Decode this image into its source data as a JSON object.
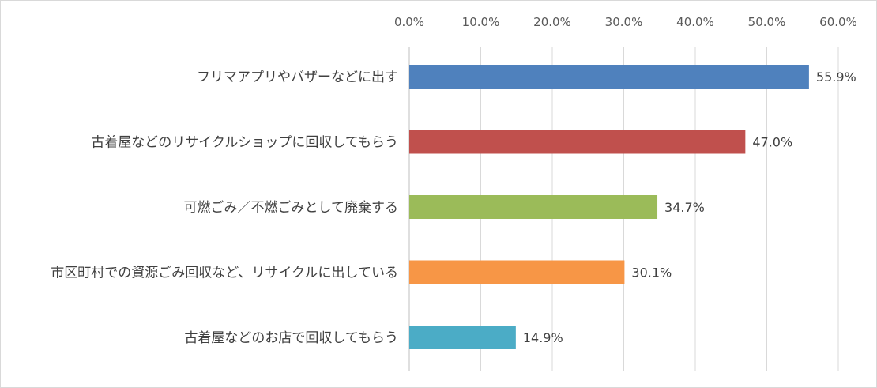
{
  "chart_data": {
    "type": "bar",
    "orientation": "horizontal",
    "title": "",
    "xlabel": "",
    "ylabel": "",
    "xlim": [
      0,
      60
    ],
    "x_tick_values": [
      0,
      10,
      20,
      30,
      40,
      50,
      60
    ],
    "x_tick_labels": [
      "0.0%",
      "10.0%",
      "20.0%",
      "30.0%",
      "40.0%",
      "50.0%",
      "60.0%"
    ],
    "x_axis_position": "top",
    "grid": true,
    "legend": "none",
    "categories": [
      "フリマアプリやバザーなどに出す",
      "古着屋などのリサイクルショップに回収してもらう",
      "可燃ごみ／不燃ごみとして廃棄する",
      "市区町村での資源ごみ回収など、リサイクルに出している",
      "古着屋などのお店で回収してもらう"
    ],
    "values": [
      55.9,
      47.0,
      34.7,
      30.1,
      14.9
    ],
    "data_labels": [
      "55.9%",
      "47.0%",
      "34.7%",
      "30.1%",
      "14.9%"
    ],
    "colors": [
      "#4f81bd",
      "#c0504d",
      "#9bbb59",
      "#f79646",
      "#4bacc6"
    ]
  }
}
